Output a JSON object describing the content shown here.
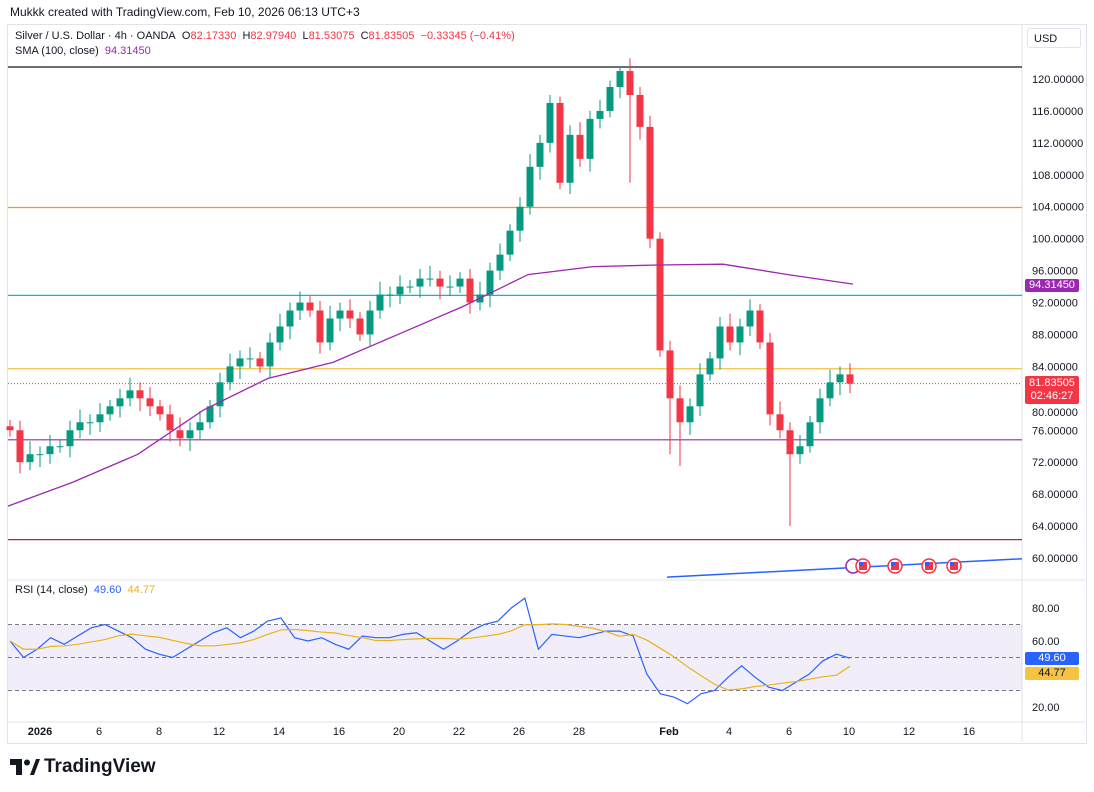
{
  "credit": "Mukkk created with TradingView.com, Feb 10, 2026 06:13 UTC+3",
  "legend": {
    "symbol": "Silver / U.S. Dollar · 4h · OANDA",
    "open_label": "O",
    "open": "82.17330",
    "high_label": "H",
    "high": "82.97940",
    "low_label": "L",
    "low": "81.53075",
    "close_label": "C",
    "close": "81.83505",
    "change": "−0.33345 (−0.41%)",
    "sma_label": "SMA (100, close)",
    "sma_value": "94.31450",
    "rsi_label": "RSI (14, close)",
    "rsi_value": "49.60",
    "rsi_ma_value": "44.77"
  },
  "currency": "USD",
  "price_tags": {
    "sma": "94.31450",
    "last": "81.83505",
    "countdown": "02:46:27",
    "rsi": "49.60",
    "rsi_ma": "44.77"
  },
  "brand": "TradingView",
  "colors": {
    "up": "#089981",
    "down": "#f23645",
    "sma": "#9c27b0",
    "rsi": "#2962ff",
    "rsi_ma": "#e9b319"
  },
  "chart_data": {
    "type": "candlestick",
    "timeframe": "4h",
    "price_axis": {
      "ticks": [
        "120.00000",
        "116.00000",
        "112.00000",
        "108.00000",
        "104.00000",
        "100.00000",
        "96.00000",
        "92.00000",
        "88.00000",
        "84.00000",
        "80.00000",
        "76.00000",
        "72.00000",
        "68.00000",
        "64.00000",
        "60.00000"
      ],
      "range": [
        57,
        122
      ]
    },
    "time_axis": {
      "ticks": [
        "2026",
        "6",
        "8",
        "12",
        "14",
        "16",
        "20",
        "22",
        "26",
        "28",
        "Feb",
        "4",
        "6",
        "10",
        "12",
        "16"
      ]
    },
    "close": [
      76,
      72,
      73,
      73,
      74,
      74,
      76,
      77,
      77,
      78,
      79,
      80,
      81,
      80,
      79,
      78,
      76,
      75,
      76,
      77,
      79,
      82,
      84,
      85,
      85,
      84,
      87,
      89,
      91,
      92,
      91,
      87,
      90,
      91,
      90,
      88,
      91,
      93,
      93,
      94,
      94,
      95,
      95,
      94,
      94,
      95,
      92,
      93,
      96,
      98,
      101,
      104,
      109,
      112,
      117,
      107,
      113,
      110,
      115,
      116,
      119,
      121,
      118,
      114,
      100,
      86,
      80,
      77,
      79,
      83,
      85,
      89,
      87,
      89,
      91,
      87,
      78,
      76,
      73,
      74,
      77,
      80,
      82,
      83,
      81.84
    ],
    "extremes": [
      {
        "i": 54,
        "high": 118
      },
      {
        "i": 61,
        "high": 121.6
      },
      {
        "i": 62,
        "low": 107
      },
      {
        "i": 67,
        "low": 71.5
      },
      {
        "i": 78,
        "low": 64
      },
      {
        "i": 66,
        "low": 73
      }
    ],
    "sma_100": [
      66.5,
      69.5,
      73,
      78.5,
      82.5,
      84.5,
      88,
      91.5,
      95.5,
      96.5,
      96.7,
      96.8,
      95.5,
      94.3
    ],
    "horizontal_levels": [
      {
        "price": 121.5,
        "color": "#131722"
      },
      {
        "price": 103.9,
        "color": "#ff9800"
      },
      {
        "price": 92.9,
        "color": "#00bcd4"
      },
      {
        "price": 83.7,
        "color": "#f5c242"
      },
      {
        "price": 74.8,
        "color": "#9c27b0"
      },
      {
        "price": 62.3,
        "color": "#b22833"
      }
    ],
    "trend_line": {
      "from": 57.6,
      "to": 59.9,
      "color": "#2962ff"
    },
    "rsi": {
      "axis_ticks": [
        "80.00",
        "60.00",
        "20.00"
      ],
      "bands": [
        70,
        50,
        30
      ],
      "values": [
        60,
        50,
        55,
        62,
        58,
        63,
        68,
        70,
        66,
        62,
        55,
        52,
        50,
        55,
        60,
        65,
        68,
        62,
        66,
        72,
        74,
        62,
        60,
        62,
        58,
        55,
        63,
        62,
        62,
        64,
        65,
        60,
        55,
        60,
        66,
        70,
        72,
        80,
        86,
        55,
        64,
        63,
        62,
        64,
        66,
        66,
        63,
        40,
        28,
        26,
        22,
        28,
        30,
        38,
        45,
        38,
        32,
        30,
        35,
        40,
        48,
        52,
        49.6
      ],
      "ma_last": 44.77
    },
    "event_icons": [
      "lightning",
      "us-flag",
      "us-flag",
      "us-flag",
      "us-flag"
    ]
  }
}
